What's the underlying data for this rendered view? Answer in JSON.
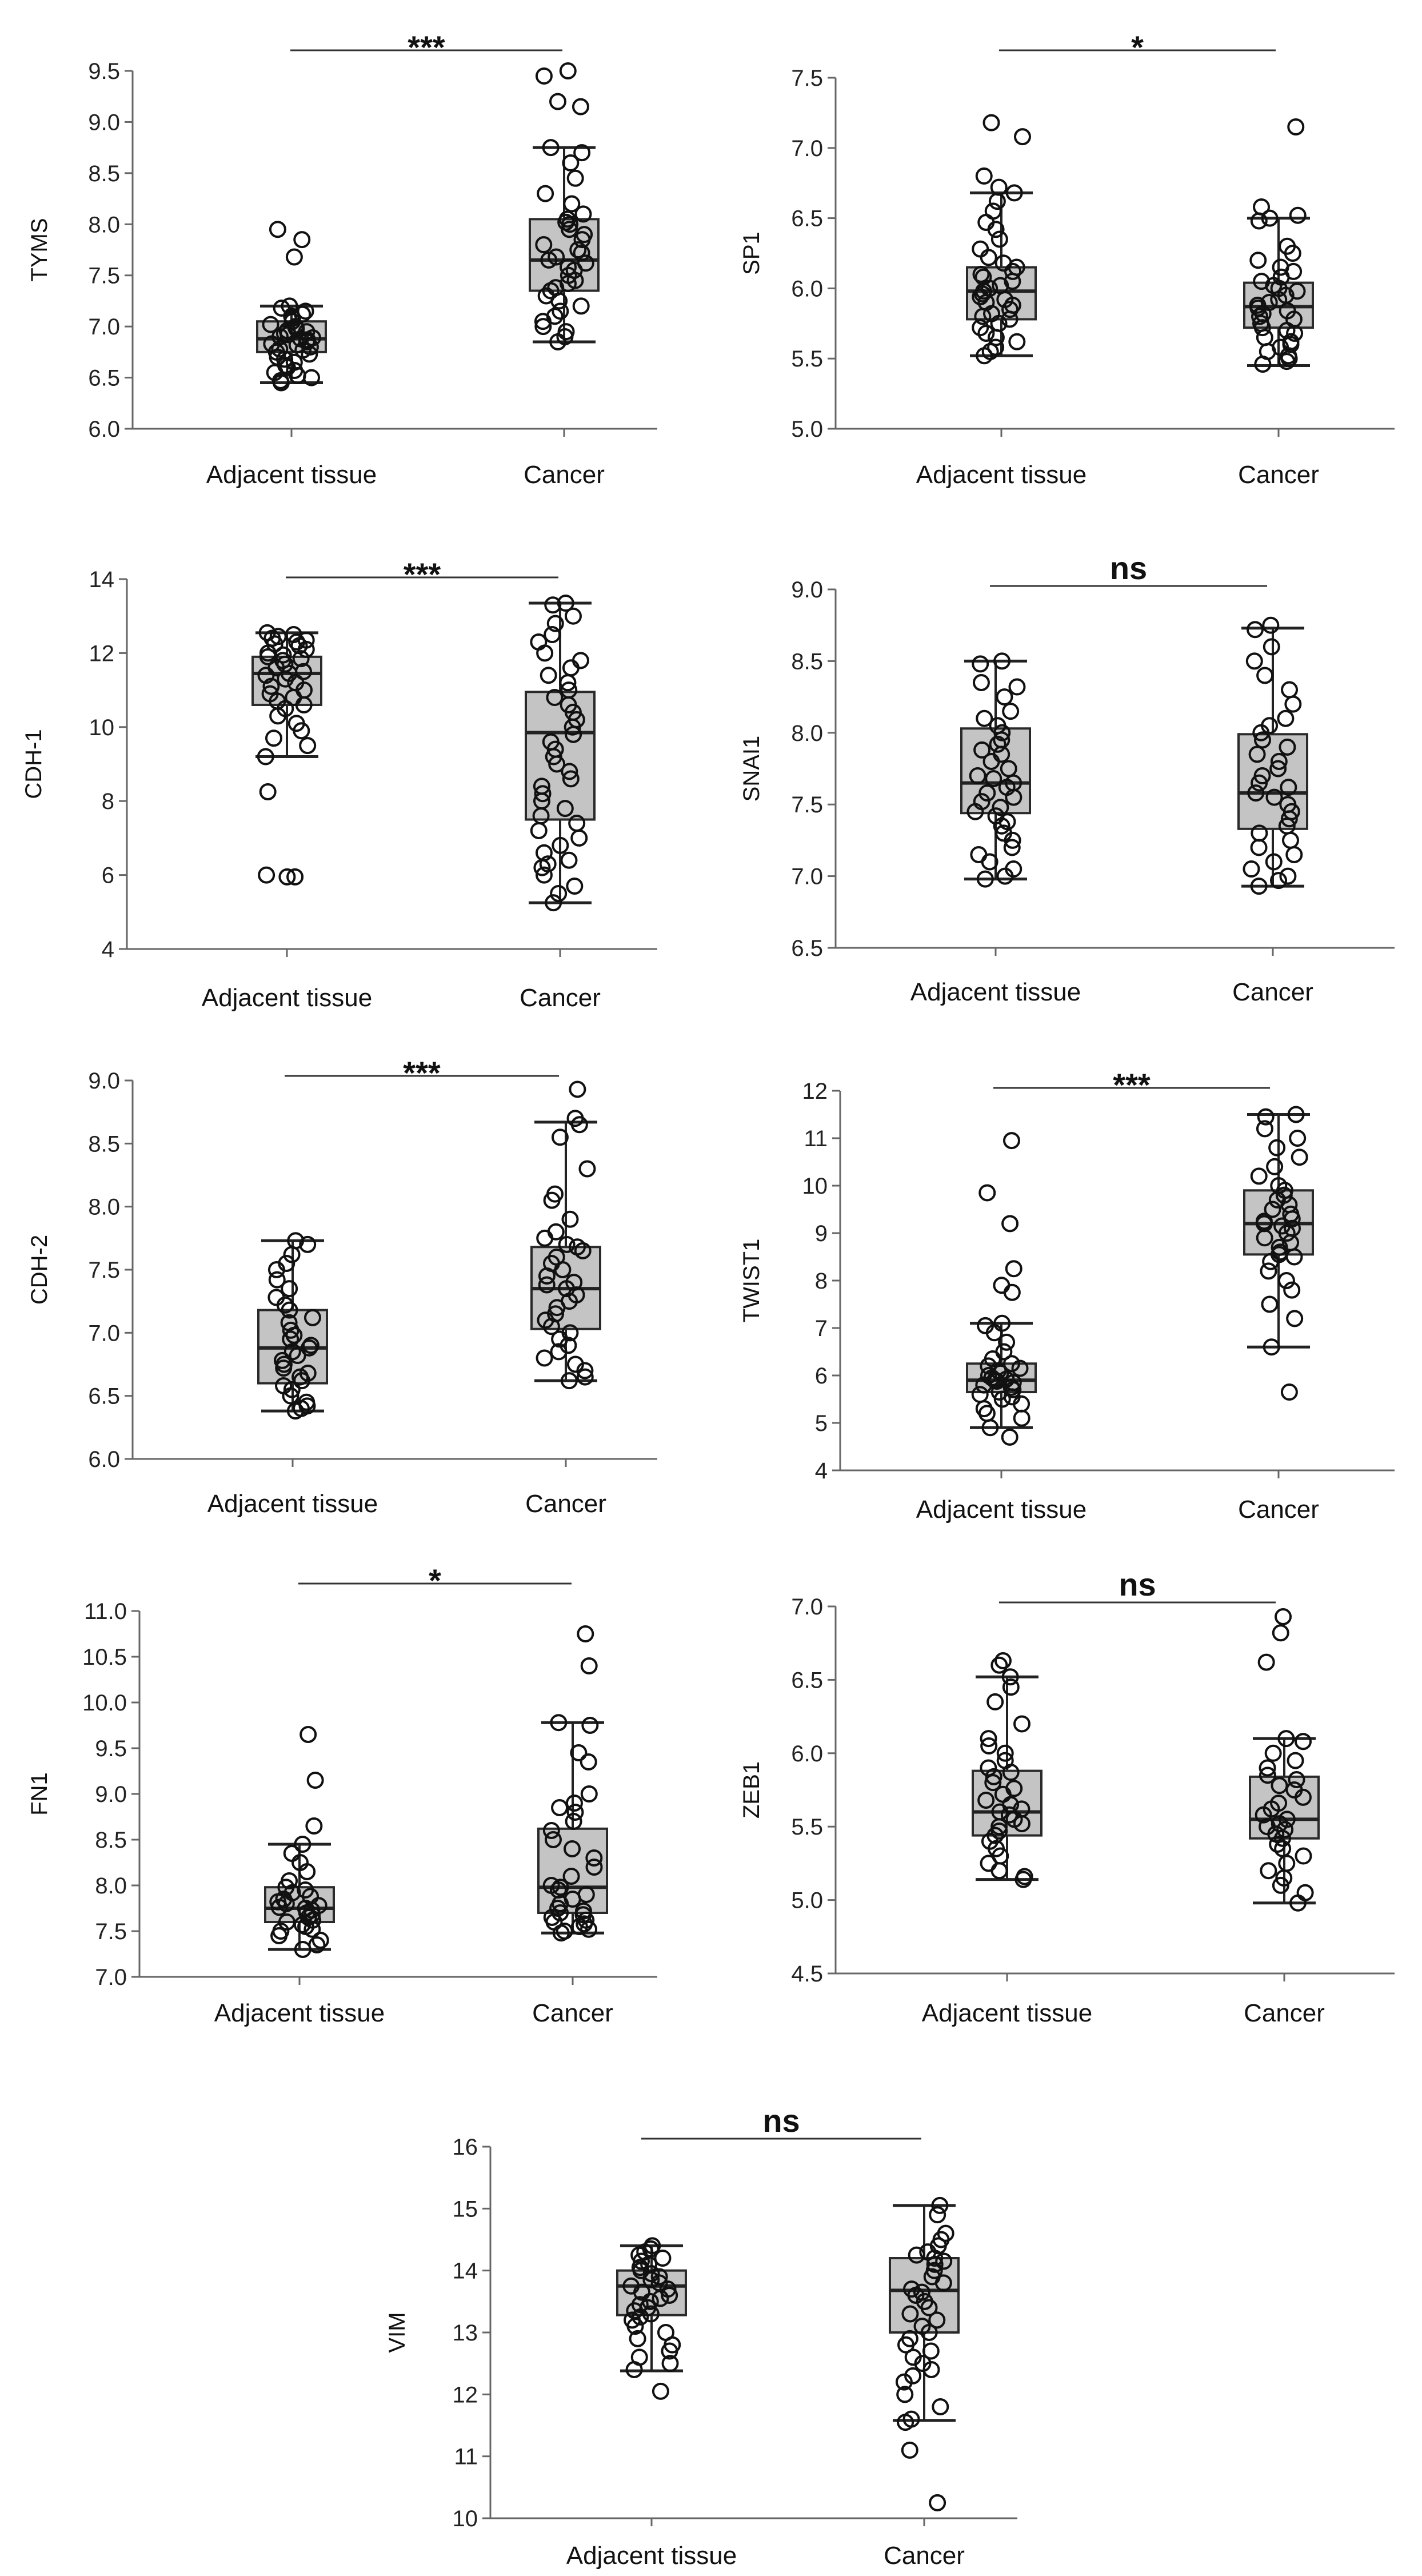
{
  "chart_data": [
    {
      "type": "box",
      "ylabel": "TYMS",
      "categories": [
        "Adjacent tissue",
        "Cancer"
      ],
      "significance": "***",
      "ylim": [
        6.0,
        9.5
      ],
      "yticks": [
        6.0,
        6.5,
        7.0,
        7.5,
        8.0,
        8.5,
        9.0,
        9.5
      ],
      "decimals": 1,
      "series": [
        {
          "name": "Adjacent tissue",
          "whisker_low": 6.45,
          "q1": 6.75,
          "median": 6.88,
          "q3": 7.05,
          "whisker_high": 7.2,
          "points": [
            7.95,
            7.85,
            7.68,
            7.2,
            7.18,
            7.15,
            7.12,
            7.1,
            7.08,
            7.05,
            7.02,
            7.0,
            6.98,
            6.96,
            6.95,
            6.93,
            6.92,
            6.9,
            6.89,
            6.88,
            6.87,
            6.85,
            6.83,
            6.82,
            6.8,
            6.78,
            6.77,
            6.75,
            6.73,
            6.7,
            6.68,
            6.65,
            6.62,
            6.6,
            6.57,
            6.55,
            6.52,
            6.5,
            6.47,
            6.45
          ]
        },
        {
          "name": "Cancer",
          "whisker_low": 6.85,
          "q1": 7.35,
          "median": 7.65,
          "q3": 8.05,
          "whisker_high": 8.75,
          "points": [
            9.5,
            9.45,
            9.2,
            9.15,
            8.75,
            8.7,
            8.6,
            8.45,
            8.3,
            8.2,
            8.1,
            8.05,
            8.02,
            8.0,
            7.95,
            7.9,
            7.85,
            7.8,
            7.75,
            7.72,
            7.68,
            7.65,
            7.62,
            7.58,
            7.55,
            7.5,
            7.45,
            7.42,
            7.38,
            7.35,
            7.3,
            7.25,
            7.2,
            7.15,
            7.1,
            7.05,
            7.0,
            6.95,
            6.9,
            6.85
          ]
        }
      ]
    },
    {
      "type": "box",
      "ylabel": "SP1",
      "categories": [
        "Adjacent tissue",
        "Cancer"
      ],
      "significance": "*",
      "ylim": [
        5.0,
        7.5
      ],
      "yticks": [
        5.0,
        5.5,
        6.0,
        6.5,
        7.0,
        7.5
      ],
      "decimals": 1,
      "series": [
        {
          "name": "Adjacent tissue",
          "whisker_low": 5.52,
          "q1": 5.78,
          "median": 5.98,
          "q3": 6.15,
          "whisker_high": 6.68,
          "points": [
            7.18,
            7.08,
            6.8,
            6.72,
            6.68,
            6.62,
            6.55,
            6.47,
            6.42,
            6.35,
            6.28,
            6.22,
            6.18,
            6.15,
            6.12,
            6.1,
            6.08,
            6.05,
            6.02,
            6.0,
            5.98,
            5.96,
            5.94,
            5.92,
            5.9,
            5.88,
            5.85,
            5.82,
            5.8,
            5.78,
            5.75,
            5.72,
            5.68,
            5.65,
            5.62,
            5.58,
            5.55,
            5.52
          ]
        },
        {
          "name": "Cancer",
          "whisker_low": 5.45,
          "q1": 5.72,
          "median": 5.87,
          "q3": 6.04,
          "whisker_high": 6.5,
          "points": [
            7.15,
            6.58,
            6.52,
            6.5,
            6.48,
            6.3,
            6.25,
            6.2,
            6.15,
            6.12,
            6.08,
            6.05,
            6.02,
            6.0,
            5.98,
            5.95,
            5.92,
            5.9,
            5.88,
            5.86,
            5.84,
            5.82,
            5.8,
            5.78,
            5.75,
            5.72,
            5.7,
            5.68,
            5.65,
            5.62,
            5.6,
            5.58,
            5.55,
            5.52,
            5.5,
            5.48,
            5.46
          ]
        }
      ]
    },
    {
      "type": "box",
      "ylabel": "CDH-1",
      "categories": [
        "Adjacent tissue",
        "Cancer"
      ],
      "significance": "***",
      "ylim": [
        4,
        14
      ],
      "yticks": [
        4,
        6,
        8,
        10,
        12,
        14
      ],
      "decimals": 0,
      "series": [
        {
          "name": "Adjacent tissue",
          "whisker_low": 9.2,
          "q1": 10.6,
          "median": 11.45,
          "q3": 11.9,
          "whisker_high": 12.55,
          "points": [
            12.55,
            12.5,
            12.45,
            12.4,
            12.35,
            12.3,
            12.25,
            12.2,
            12.1,
            12.0,
            11.95,
            11.9,
            11.85,
            11.8,
            11.7,
            11.6,
            11.5,
            11.45,
            11.4,
            11.3,
            11.2,
            11.1,
            11.0,
            10.9,
            10.8,
            10.7,
            10.6,
            10.5,
            10.3,
            10.1,
            9.9,
            9.7,
            9.5,
            9.2,
            8.25,
            5.95,
            5.95,
            6.0
          ]
        },
        {
          "name": "Cancer",
          "whisker_low": 5.25,
          "q1": 7.5,
          "median": 9.85,
          "q3": 10.95,
          "whisker_high": 13.35,
          "points": [
            13.35,
            13.3,
            13.0,
            12.8,
            12.5,
            12.3,
            12.0,
            11.8,
            11.6,
            11.4,
            11.2,
            11.0,
            10.8,
            10.6,
            10.4,
            10.2,
            10.0,
            9.8,
            9.6,
            9.4,
            9.2,
            9.0,
            8.8,
            8.6,
            8.4,
            8.2,
            8.0,
            7.8,
            7.6,
            7.4,
            7.2,
            7.0,
            6.8,
            6.6,
            6.4,
            6.3,
            6.2,
            6.0,
            5.7,
            5.5,
            5.25
          ]
        }
      ]
    },
    {
      "type": "box",
      "ylabel": "SNAI1",
      "categories": [
        "Adjacent tissue",
        "Cancer"
      ],
      "significance": "ns",
      "ylim": [
        6.5,
        9.0
      ],
      "yticks": [
        6.5,
        7.0,
        7.5,
        8.0,
        8.5,
        9.0
      ],
      "decimals": 1,
      "series": [
        {
          "name": "Adjacent tissue",
          "whisker_low": 6.98,
          "q1": 7.44,
          "median": 7.65,
          "q3": 8.03,
          "whisker_high": 8.5,
          "points": [
            8.5,
            8.48,
            8.35,
            8.32,
            8.25,
            8.15,
            8.1,
            8.05,
            8.0,
            7.95,
            7.92,
            7.88,
            7.85,
            7.8,
            7.75,
            7.7,
            7.68,
            7.65,
            7.62,
            7.58,
            7.55,
            7.52,
            7.48,
            7.45,
            7.42,
            7.38,
            7.35,
            7.3,
            7.25,
            7.2,
            7.15,
            7.1,
            7.05,
            7.0,
            6.98
          ]
        },
        {
          "name": "Cancer",
          "whisker_low": 6.93,
          "q1": 7.33,
          "median": 7.58,
          "q3": 7.99,
          "whisker_high": 8.73,
          "points": [
            8.75,
            8.72,
            8.6,
            8.5,
            8.4,
            8.3,
            8.2,
            8.1,
            8.05,
            8.0,
            7.95,
            7.9,
            7.85,
            7.8,
            7.75,
            7.7,
            7.65,
            7.62,
            7.58,
            7.55,
            7.5,
            7.45,
            7.4,
            7.35,
            7.3,
            7.25,
            7.2,
            7.15,
            7.1,
            7.05,
            7.0,
            6.97,
            6.93
          ]
        }
      ]
    },
    {
      "type": "box",
      "ylabel": "CDH-2",
      "categories": [
        "Adjacent tissue",
        "Cancer"
      ],
      "significance": "***",
      "ylim": [
        6.0,
        9.0
      ],
      "yticks": [
        6.0,
        6.5,
        7.0,
        7.5,
        8.0,
        8.5,
        9.0
      ],
      "decimals": 1,
      "series": [
        {
          "name": "Adjacent tissue",
          "whisker_low": 6.38,
          "q1": 6.6,
          "median": 6.88,
          "q3": 7.18,
          "whisker_high": 7.73,
          "points": [
            7.73,
            7.7,
            7.62,
            7.55,
            7.5,
            7.42,
            7.35,
            7.28,
            7.22,
            7.18,
            7.12,
            7.08,
            7.02,
            6.98,
            6.95,
            6.9,
            6.88,
            6.85,
            6.82,
            6.78,
            6.75,
            6.72,
            6.68,
            6.65,
            6.62,
            6.58,
            6.55,
            6.5,
            6.45,
            6.42,
            6.4,
            6.38
          ]
        },
        {
          "name": "Cancer",
          "whisker_low": 6.62,
          "q1": 7.03,
          "median": 7.35,
          "q3": 7.68,
          "whisker_high": 8.67,
          "points": [
            8.93,
            8.7,
            8.65,
            8.55,
            8.3,
            8.1,
            8.05,
            7.9,
            7.8,
            7.75,
            7.7,
            7.68,
            7.65,
            7.6,
            7.55,
            7.5,
            7.45,
            7.4,
            7.38,
            7.35,
            7.3,
            7.25,
            7.2,
            7.15,
            7.1,
            7.05,
            7.0,
            6.95,
            6.9,
            6.85,
            6.8,
            6.75,
            6.7,
            6.65,
            6.62
          ]
        }
      ]
    },
    {
      "type": "box",
      "ylabel": "TWIST1",
      "categories": [
        "Adjacent tissue",
        "Cancer"
      ],
      "significance": "***",
      "ylim": [
        4,
        12
      ],
      "yticks": [
        4,
        5,
        6,
        7,
        8,
        9,
        10,
        11,
        12
      ],
      "decimals": 0,
      "series": [
        {
          "name": "Adjacent tissue",
          "whisker_low": 4.9,
          "q1": 5.65,
          "median": 5.9,
          "q3": 6.25,
          "whisker_high": 7.1,
          "points": [
            10.95,
            9.85,
            9.2,
            8.25,
            7.9,
            7.75,
            7.1,
            7.05,
            6.9,
            6.7,
            6.5,
            6.35,
            6.25,
            6.2,
            6.15,
            6.1,
            6.05,
            6.0,
            5.95,
            5.92,
            5.9,
            5.88,
            5.85,
            5.8,
            5.75,
            5.7,
            5.65,
            5.6,
            5.55,
            5.5,
            5.4,
            5.3,
            5.2,
            5.1,
            4.9,
            4.7
          ]
        },
        {
          "name": "Cancer",
          "whisker_low": 6.6,
          "q1": 8.55,
          "median": 9.2,
          "q3": 9.9,
          "whisker_high": 11.5,
          "points": [
            11.5,
            11.45,
            11.2,
            11.0,
            10.8,
            10.6,
            10.4,
            10.2,
            10.0,
            9.9,
            9.8,
            9.7,
            9.6,
            9.5,
            9.4,
            9.3,
            9.25,
            9.2,
            9.15,
            9.1,
            9.0,
            8.9,
            8.8,
            8.7,
            8.6,
            8.55,
            8.5,
            8.4,
            8.2,
            8.0,
            7.8,
            7.5,
            7.2,
            6.6,
            5.65
          ]
        }
      ]
    },
    {
      "type": "box",
      "ylabel": "FN1",
      "categories": [
        "Adjacent tissue",
        "Cancer"
      ],
      "significance": "*",
      "ylim": [
        7.0,
        11.0
      ],
      "yticks": [
        7.0,
        7.5,
        8.0,
        8.5,
        9.0,
        9.5,
        10.0,
        10.5,
        11.0
      ],
      "decimals": 1,
      "series": [
        {
          "name": "Adjacent tissue",
          "whisker_low": 7.3,
          "q1": 7.6,
          "median": 7.75,
          "q3": 7.98,
          "whisker_high": 8.45,
          "points": [
            9.65,
            9.15,
            8.65,
            8.45,
            8.35,
            8.25,
            8.15,
            8.05,
            7.98,
            7.95,
            7.92,
            7.88,
            7.85,
            7.82,
            7.8,
            7.78,
            7.76,
            7.75,
            7.73,
            7.7,
            7.68,
            7.65,
            7.62,
            7.6,
            7.57,
            7.55,
            7.52,
            7.5,
            7.45,
            7.4,
            7.35,
            7.3
          ]
        },
        {
          "name": "Cancer",
          "whisker_low": 7.48,
          "q1": 7.7,
          "median": 7.98,
          "q3": 8.62,
          "whisker_high": 9.78,
          "points": [
            10.75,
            10.4,
            9.78,
            9.75,
            9.45,
            9.35,
            9.0,
            8.9,
            8.85,
            8.8,
            8.7,
            8.6,
            8.5,
            8.4,
            8.3,
            8.2,
            8.1,
            8.0,
            7.98,
            7.95,
            7.9,
            7.85,
            7.8,
            7.75,
            7.72,
            7.7,
            7.68,
            7.65,
            7.62,
            7.6,
            7.58,
            7.55,
            7.52,
            7.5,
            7.48
          ]
        }
      ]
    },
    {
      "type": "box",
      "ylabel": "ZEB1",
      "categories": [
        "Adjacent tissue",
        "Cancer"
      ],
      "significance": "ns",
      "ylim": [
        4.5,
        7.0
      ],
      "yticks": [
        4.5,
        5.0,
        5.5,
        6.0,
        6.5,
        7.0
      ],
      "decimals": 1,
      "series": [
        {
          "name": "Adjacent tissue",
          "whisker_low": 5.14,
          "q1": 5.44,
          "median": 5.6,
          "q3": 5.88,
          "whisker_high": 6.52,
          "points": [
            6.63,
            6.6,
            6.52,
            6.45,
            6.35,
            6.2,
            6.1,
            6.05,
            6.0,
            5.95,
            5.9,
            5.87,
            5.84,
            5.8,
            5.76,
            5.72,
            5.68,
            5.65,
            5.62,
            5.6,
            5.58,
            5.55,
            5.52,
            5.5,
            5.47,
            5.44,
            5.4,
            5.35,
            5.3,
            5.25,
            5.2,
            5.16,
            5.14
          ]
        },
        {
          "name": "Cancer",
          "whisker_low": 4.98,
          "q1": 5.42,
          "median": 5.55,
          "q3": 5.84,
          "whisker_high": 6.1,
          "points": [
            6.93,
            6.82,
            6.62,
            6.1,
            6.08,
            6.0,
            5.95,
            5.9,
            5.85,
            5.82,
            5.78,
            5.75,
            5.7,
            5.66,
            5.62,
            5.58,
            5.55,
            5.52,
            5.5,
            5.48,
            5.45,
            5.42,
            5.38,
            5.35,
            5.3,
            5.25,
            5.2,
            5.15,
            5.1,
            5.05,
            4.98
          ]
        }
      ]
    },
    {
      "type": "box",
      "ylabel": "VIM",
      "categories": [
        "Adjacent tissue",
        "Cancer"
      ],
      "significance": "ns",
      "ylim": [
        10,
        16
      ],
      "yticks": [
        10,
        11,
        12,
        13,
        14,
        15,
        16
      ],
      "decimals": 0,
      "series": [
        {
          "name": "Adjacent tissue",
          "whisker_low": 12.38,
          "q1": 13.28,
          "median": 13.75,
          "q3": 14.0,
          "whisker_high": 14.4,
          "points": [
            14.4,
            14.35,
            14.3,
            14.25,
            14.2,
            14.15,
            14.1,
            14.05,
            14.0,
            13.95,
            13.9,
            13.85,
            13.8,
            13.75,
            13.7,
            13.65,
            13.6,
            13.55,
            13.5,
            13.45,
            13.4,
            13.35,
            13.3,
            13.25,
            13.2,
            13.1,
            13.0,
            12.9,
            12.8,
            12.7,
            12.6,
            12.5,
            12.4,
            12.05
          ]
        },
        {
          "name": "Cancer",
          "whisker_low": 11.58,
          "q1": 13.0,
          "median": 13.68,
          "q3": 14.2,
          "whisker_high": 15.05,
          "points": [
            15.05,
            14.9,
            14.6,
            14.5,
            14.4,
            14.3,
            14.25,
            14.2,
            14.15,
            14.1,
            14.0,
            13.9,
            13.8,
            13.7,
            13.65,
            13.6,
            13.5,
            13.4,
            13.3,
            13.2,
            13.1,
            13.0,
            12.9,
            12.8,
            12.7,
            12.6,
            12.5,
            12.4,
            12.3,
            12.2,
            12.0,
            11.8,
            11.6,
            11.55,
            11.1,
            10.25
          ]
        }
      ]
    }
  ]
}
